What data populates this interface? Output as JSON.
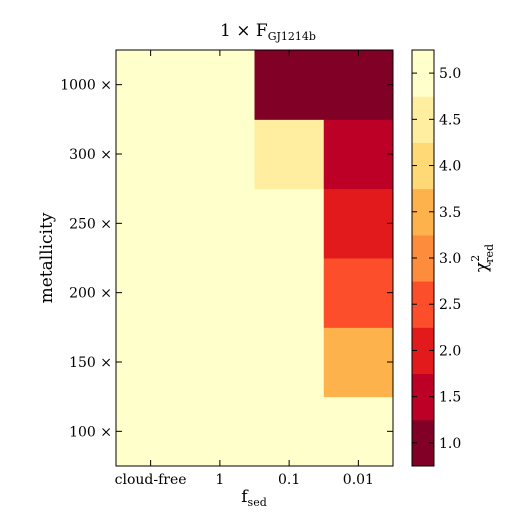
{
  "chart_data": {
    "type": "heatmap",
    "title": "1 × F",
    "title_subscript": "GJ1214b",
    "xlabel": "f",
    "xlabel_subscript": "sed",
    "ylabel": "metallicity",
    "x_categories": [
      "cloud-free",
      "1",
      "0.1",
      "0.01"
    ],
    "y_categories": [
      "100 ×",
      "150 ×",
      "200 ×",
      "250 ×",
      "300 ×",
      "1000 ×"
    ],
    "values": [
      [
        5.25,
        5.25,
        5.25,
        5.25
      ],
      [
        5.25,
        5.25,
        5.25,
        3.6
      ],
      [
        5.25,
        5.25,
        5.25,
        2.6
      ],
      [
        5.25,
        5.25,
        5.25,
        2.2
      ],
      [
        5.25,
        5.25,
        4.3,
        1.7
      ],
      [
        5.25,
        5.25,
        0.8,
        0.8
      ]
    ],
    "colorbar": {
      "label": "χ",
      "label_superscript": "2",
      "label_subscript": "red",
      "ticks": [
        "1.0",
        "1.5",
        "2.0",
        "2.5",
        "3.0",
        "3.5",
        "4.0",
        "4.5",
        "5.0"
      ],
      "tick_values": [
        1.0,
        1.5,
        2.0,
        2.5,
        3.0,
        3.5,
        4.0,
        4.5,
        5.0
      ],
      "range": [
        0.75,
        5.25
      ],
      "bins": [
        {
          "from": 0.75,
          "to": 1.25,
          "color": "#800026"
        },
        {
          "from": 1.25,
          "to": 1.75,
          "color": "#bd0026"
        },
        {
          "from": 1.75,
          "to": 2.25,
          "color": "#e31a1c"
        },
        {
          "from": 2.25,
          "to": 2.75,
          "color": "#fc4e2a"
        },
        {
          "from": 2.75,
          "to": 3.25,
          "color": "#fd8d3c"
        },
        {
          "from": 3.25,
          "to": 3.75,
          "color": "#feb24c"
        },
        {
          "from": 3.75,
          "to": 4.25,
          "color": "#fed976"
        },
        {
          "from": 4.25,
          "to": 4.75,
          "color": "#ffeda0"
        },
        {
          "from": 4.75,
          "to": 5.25,
          "color": "#ffffcc"
        }
      ]
    }
  }
}
